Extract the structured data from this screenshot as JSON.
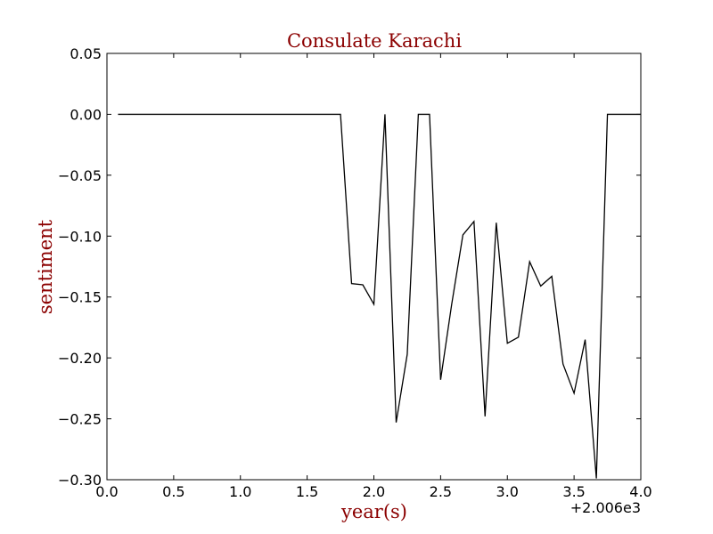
{
  "chart_data": {
    "type": "line",
    "title": "Consulate Karachi",
    "xlabel": "year(s)",
    "ylabel": "sentiment",
    "x_offset_label": "+2.006e3",
    "xlim": [
      0.0,
      4.0
    ],
    "ylim": [
      -0.3,
      0.05
    ],
    "xticks": [
      0.0,
      0.5,
      1.0,
      1.5,
      2.0,
      2.5,
      3.0,
      3.5,
      4.0
    ],
    "xtick_labels": [
      "0.0",
      "0.5",
      "1.0",
      "1.5",
      "2.0",
      "2.5",
      "3.0",
      "3.5",
      "4.0"
    ],
    "yticks": [
      0.05,
      0.0,
      -0.05,
      -0.1,
      -0.15,
      -0.2,
      -0.25,
      -0.3
    ],
    "ytick_labels": [
      "0.05",
      "0.00",
      "−0.05",
      "−0.10",
      "−0.15",
      "−0.20",
      "−0.25",
      "−0.30"
    ],
    "grid": false,
    "color": "#000000",
    "title_color": "#8b0000",
    "series": [
      {
        "x": [
          0.083,
          1.75,
          1.833,
          1.917,
          2.0,
          2.083,
          2.167,
          2.25,
          2.333,
          2.417,
          2.5,
          2.583,
          2.667,
          2.75,
          2.833,
          2.917,
          3.0,
          3.083,
          3.167,
          3.25,
          3.333,
          3.417,
          3.5,
          3.583,
          3.667,
          3.75,
          3.833,
          4.0
        ],
        "y": [
          0.0,
          0.0,
          -0.139,
          -0.14,
          -0.156,
          0.0,
          -0.253,
          -0.197,
          0.0,
          0.0,
          -0.218,
          -0.156,
          -0.099,
          -0.088,
          -0.248,
          -0.089,
          -0.188,
          -0.183,
          -0.121,
          -0.141,
          -0.133,
          -0.205,
          -0.229,
          -0.185,
          -0.299,
          0.0,
          0.0,
          0.0
        ]
      }
    ]
  }
}
